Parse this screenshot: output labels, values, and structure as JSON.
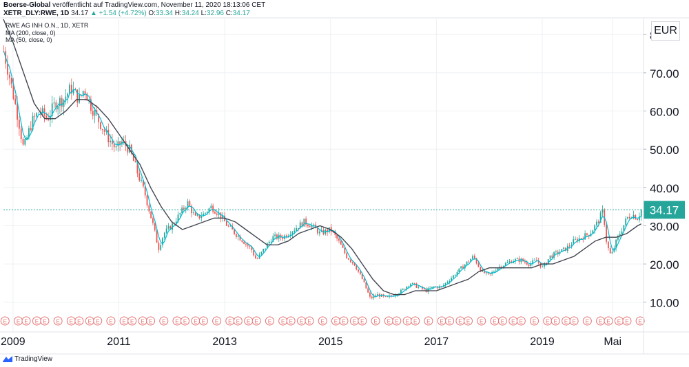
{
  "header": {
    "publisher": "Boerse-Global",
    "published_text": " veröffentlicht auf TradingView.com, November 11, 2020 18:13:06 CET",
    "symbol": "XETR_DLY:RWE, 1D",
    "last": "34.17",
    "change": "▲ +1.54 (+4.72%)",
    "o_label": "O:",
    "o_value": "33.34",
    "h_label": "H:",
    "h_value": "34.24",
    "l_label": "L:",
    "l_value": "32.96",
    "c_label": "C:",
    "c_value": "34.17"
  },
  "legend": {
    "instrument": "RWE AG INH O.N., 1D, XETR",
    "ma200": "MA (200, close, 0)",
    "ma50": "MA (50, close, 0)"
  },
  "currency": "EUR",
  "branding": "TradingView",
  "colors": {
    "up": "#26a69a",
    "down": "#ef5350",
    "ma50": "#00bcd4",
    "ma200": "#434651",
    "grid": "#eef0f4",
    "last": "#26a69a",
    "event": "#e57373"
  },
  "chart_data": {
    "type": "candlestick",
    "y_ticks": [
      "80.00",
      "70.00",
      "60.00",
      "50.00",
      "40.00",
      "30.00",
      "20.00",
      "10.00"
    ],
    "ylim": [
      6,
      84
    ],
    "x_ticks": [
      {
        "label": "2009",
        "t": 2009.0
      },
      {
        "label": "2011",
        "t": 2011.0
      },
      {
        "label": "2013",
        "t": 2013.0
      },
      {
        "label": "2015",
        "t": 2015.0
      },
      {
        "label": "2017",
        "t": 2017.0
      },
      {
        "label": "2019",
        "t": 2019.0
      },
      {
        "label": "Mai",
        "t": 2020.33
      }
    ],
    "xlim": [
      2008.82,
      2020.9
    ],
    "last_price": 34.17,
    "last_label": "34.17",
    "price_path": [
      [
        2008.82,
        76
      ],
      [
        2008.95,
        68
      ],
      [
        2009.1,
        58
      ],
      [
        2009.2,
        50
      ],
      [
        2009.35,
        57
      ],
      [
        2009.5,
        60
      ],
      [
        2009.65,
        58
      ],
      [
        2009.8,
        62
      ],
      [
        2009.95,
        63
      ],
      [
        2010.1,
        66
      ],
      [
        2010.25,
        63
      ],
      [
        2010.35,
        66
      ],
      [
        2010.45,
        62
      ],
      [
        2010.6,
        58
      ],
      [
        2010.8,
        53
      ],
      [
        2010.95,
        50
      ],
      [
        2011.05,
        52
      ],
      [
        2011.2,
        50
      ],
      [
        2011.35,
        44
      ],
      [
        2011.5,
        38
      ],
      [
        2011.65,
        30
      ],
      [
        2011.75,
        24
      ],
      [
        2011.85,
        28
      ],
      [
        2012.0,
        30
      ],
      [
        2012.15,
        33
      ],
      [
        2012.3,
        36
      ],
      [
        2012.45,
        32
      ],
      [
        2012.6,
        33
      ],
      [
        2012.75,
        35
      ],
      [
        2012.9,
        33
      ],
      [
        2013.05,
        30
      ],
      [
        2013.2,
        28
      ],
      [
        2013.35,
        26
      ],
      [
        2013.5,
        24
      ],
      [
        2013.6,
        21
      ],
      [
        2013.75,
        24
      ],
      [
        2013.9,
        27
      ],
      [
        2014.1,
        27
      ],
      [
        2014.3,
        29
      ],
      [
        2014.5,
        31
      ],
      [
        2014.65,
        30
      ],
      [
        2014.8,
        28
      ],
      [
        2015.0,
        29
      ],
      [
        2015.15,
        26
      ],
      [
        2015.3,
        22
      ],
      [
        2015.45,
        20
      ],
      [
        2015.6,
        16
      ],
      [
        2015.75,
        11
      ],
      [
        2015.9,
        12
      ],
      [
        2016.05,
        11
      ],
      [
        2016.2,
        12
      ],
      [
        2016.35,
        13
      ],
      [
        2016.5,
        15
      ],
      [
        2016.65,
        14
      ],
      [
        2016.8,
        13
      ],
      [
        2016.95,
        14
      ],
      [
        2017.1,
        14
      ],
      [
        2017.25,
        16
      ],
      [
        2017.4,
        18
      ],
      [
        2017.55,
        20
      ],
      [
        2017.7,
        22
      ],
      [
        2017.85,
        18
      ],
      [
        2018.0,
        17
      ],
      [
        2018.15,
        19
      ],
      [
        2018.3,
        20
      ],
      [
        2018.45,
        21
      ],
      [
        2018.6,
        21
      ],
      [
        2018.75,
        20
      ],
      [
        2018.9,
        21
      ],
      [
        2019.0,
        19
      ],
      [
        2019.15,
        22
      ],
      [
        2019.3,
        23
      ],
      [
        2019.45,
        24
      ],
      [
        2019.6,
        26
      ],
      [
        2019.75,
        27
      ],
      [
        2019.9,
        28
      ],
      [
        2020.05,
        31
      ],
      [
        2020.15,
        34
      ],
      [
        2020.22,
        25
      ],
      [
        2020.3,
        22
      ],
      [
        2020.4,
        26
      ],
      [
        2020.5,
        29
      ],
      [
        2020.6,
        32
      ],
      [
        2020.7,
        33
      ],
      [
        2020.8,
        32
      ],
      [
        2020.87,
        34.17
      ]
    ],
    "ma200_path": [
      [
        2008.82,
        84
      ],
      [
        2009.0,
        78
      ],
      [
        2009.2,
        70
      ],
      [
        2009.4,
        62
      ],
      [
        2009.6,
        58
      ],
      [
        2009.8,
        58
      ],
      [
        2010.0,
        60
      ],
      [
        2010.2,
        63
      ],
      [
        2010.4,
        63
      ],
      [
        2010.6,
        61
      ],
      [
        2010.8,
        58
      ],
      [
        2011.0,
        54
      ],
      [
        2011.2,
        50
      ],
      [
        2011.4,
        46
      ],
      [
        2011.6,
        40
      ],
      [
        2011.8,
        35
      ],
      [
        2012.0,
        31
      ],
      [
        2012.2,
        29
      ],
      [
        2012.4,
        30
      ],
      [
        2012.6,
        31
      ],
      [
        2012.8,
        32
      ],
      [
        2013.0,
        32
      ],
      [
        2013.2,
        31
      ],
      [
        2013.4,
        29
      ],
      [
        2013.6,
        27
      ],
      [
        2013.8,
        25
      ],
      [
        2014.0,
        25
      ],
      [
        2014.2,
        26
      ],
      [
        2014.4,
        28
      ],
      [
        2014.6,
        29
      ],
      [
        2014.8,
        30
      ],
      [
        2015.0,
        29
      ],
      [
        2015.2,
        27
      ],
      [
        2015.4,
        24
      ],
      [
        2015.6,
        20
      ],
      [
        2015.8,
        16
      ],
      [
        2016.0,
        13
      ],
      [
        2016.2,
        12
      ],
      [
        2016.4,
        12
      ],
      [
        2016.6,
        13
      ],
      [
        2016.8,
        13
      ],
      [
        2017.0,
        13
      ],
      [
        2017.2,
        14
      ],
      [
        2017.4,
        15
      ],
      [
        2017.6,
        16
      ],
      [
        2017.8,
        18
      ],
      [
        2018.0,
        19
      ],
      [
        2018.2,
        19
      ],
      [
        2018.4,
        19
      ],
      [
        2018.6,
        19
      ],
      [
        2018.8,
        19
      ],
      [
        2019.0,
        20
      ],
      [
        2019.2,
        20
      ],
      [
        2019.4,
        21
      ],
      [
        2019.6,
        22
      ],
      [
        2019.8,
        24
      ],
      [
        2020.0,
        26
      ],
      [
        2020.2,
        27
      ],
      [
        2020.4,
        27
      ],
      [
        2020.6,
        28
      ],
      [
        2020.8,
        30
      ],
      [
        2020.87,
        30.5
      ]
    ],
    "event_badge": "E",
    "event_times": [
      2008.85,
      2009.1,
      2009.25,
      2009.45,
      2009.6,
      2009.85,
      2010.1,
      2010.25,
      2010.45,
      2010.6,
      2010.85,
      2011.1,
      2011.25,
      2011.45,
      2011.6,
      2011.85,
      2012.1,
      2012.25,
      2012.45,
      2012.6,
      2012.85,
      2013.1,
      2013.25,
      2013.45,
      2013.6,
      2013.85,
      2014.1,
      2014.25,
      2014.45,
      2014.6,
      2014.85,
      2015.1,
      2015.25,
      2015.45,
      2015.6,
      2015.85,
      2016.1,
      2016.25,
      2016.45,
      2016.6,
      2016.85,
      2017.1,
      2017.25,
      2017.45,
      2017.6,
      2017.85,
      2018.1,
      2018.25,
      2018.45,
      2018.6,
      2018.85,
      2019.1,
      2019.25,
      2019.45,
      2019.6,
      2019.85,
      2020.1,
      2020.25,
      2020.45,
      2020.6,
      2020.85
    ]
  }
}
